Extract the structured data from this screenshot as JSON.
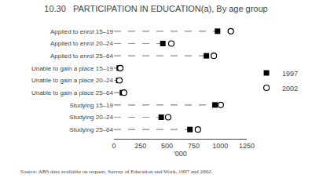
{
  "chart_data": {
    "type": "dot",
    "title": "10.30   PARTICIPATION IN EDUCATION(a), By age group",
    "categories": [
      "Applied to enrol 15–19",
      "Applied to enrol 20–24",
      "Applied to enrol 25–64",
      "Unable to gain a place 15–19",
      "Unable to gain a place 20–24",
      "Unable to gain a place 25–64",
      "Studying 15–19",
      "Studying 20–24",
      "Studying 25–64"
    ],
    "series": [
      {
        "name": "1997",
        "color": "#000000",
        "marker": "square",
        "values": [
          975,
          460,
          870,
          50,
          45,
          80,
          950,
          445,
          715
        ]
      },
      {
        "name": "2002",
        "color": "#000000",
        "marker": "circle-open",
        "values": [
          1100,
          540,
          940,
          60,
          52,
          95,
          1005,
          510,
          790
        ]
      }
    ],
    "xlabel": "'000",
    "xlim": [
      0,
      1250
    ],
    "xticks": [
      0,
      250,
      500,
      750,
      1000,
      1250
    ],
    "grid": false,
    "legend": "right",
    "color": "#999999",
    "line_style": "dashed",
    "annotations": [
      "Source: ABS data available on request, Survey of Education and Work, 1997 and 2002."
    ]
  }
}
